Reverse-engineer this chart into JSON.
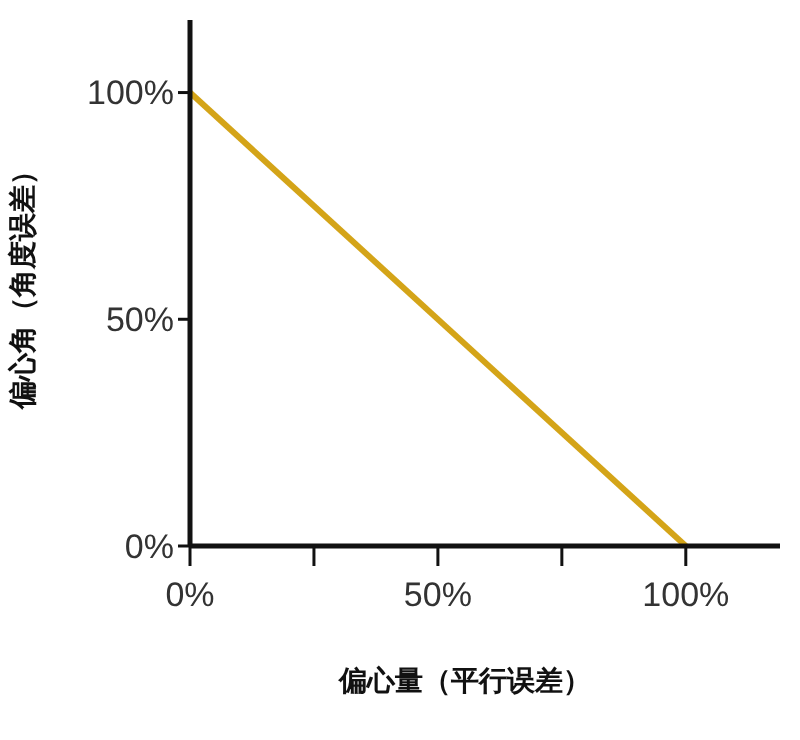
{
  "chart_data": {
    "type": "line",
    "xlabel": "偏心量（平行误差）",
    "ylabel": "偏心角（角度误差）",
    "x": [
      0,
      100
    ],
    "series": [
      {
        "color": "#d4a418",
        "values": [
          100,
          0
        ]
      }
    ],
    "xlim": [
      0,
      119
    ],
    "xticks": [
      {
        "value": 0,
        "label": "0%"
      },
      {
        "value": 25,
        "label": null
      },
      {
        "value": 50,
        "label": "50%"
      },
      {
        "value": 75,
        "label": null
      },
      {
        "value": 100,
        "label": "100%"
      }
    ],
    "ylim": [
      0,
      116
    ],
    "yticks": [
      {
        "value": 0,
        "label": "0%"
      },
      {
        "value": 50,
        "label": "50%"
      },
      {
        "value": 100,
        "label": "100%"
      }
    ],
    "grid": false,
    "marker": "none",
    "line_style": "solid"
  }
}
